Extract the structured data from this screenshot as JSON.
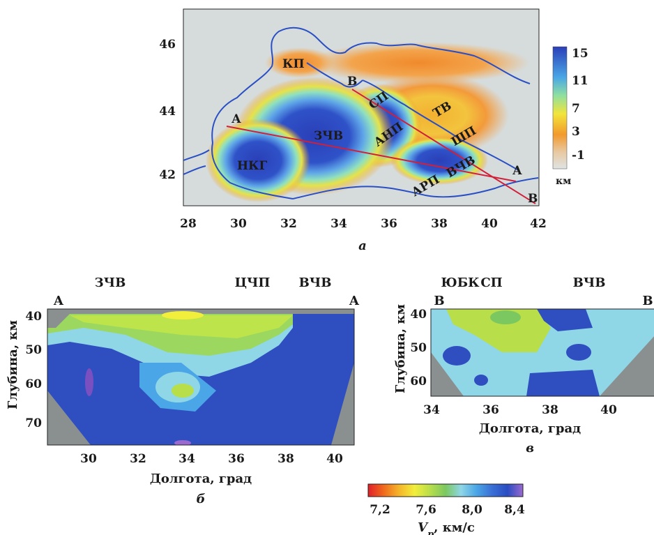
{
  "map": {
    "caption": "а",
    "lon_ticks": [
      "28",
      "30",
      "32",
      "34",
      "36",
      "38",
      "40",
      "42"
    ],
    "lat_ticks": [
      "46",
      "44",
      "42"
    ],
    "colorbar": {
      "ticks": [
        "15",
        "11",
        "7",
        "3",
        "-1"
      ],
      "unit": "км"
    },
    "regions": [
      "КП",
      "В",
      "СП",
      "ТВ",
      "ШП",
      "А",
      "ЗЧВ",
      "АНП",
      "НКГ",
      "ВЧВ",
      "А",
      "АРП",
      "В"
    ],
    "colors": {
      "coast": "#2a4fc4",
      "profile": "#d0203a"
    }
  },
  "section_b": {
    "caption": "б",
    "top_labels": [
      "ЗЧВ",
      "ЦЧП",
      "ВЧВ"
    ],
    "end_left": "А",
    "end_right": "А",
    "x_ticks": [
      "30",
      "32",
      "34",
      "36",
      "38",
      "40"
    ],
    "y_ticks": [
      "40",
      "50",
      "60",
      "70"
    ],
    "xlabel": "Долгота, град",
    "ylabel": "Глубина, км"
  },
  "section_c": {
    "caption": "в",
    "top_labels": [
      "ЮБК",
      "СП",
      "ВЧВ"
    ],
    "end_left": "В",
    "end_right": "В",
    "x_ticks": [
      "34",
      "36",
      "38",
      "40"
    ],
    "y_ticks": [
      "40",
      "50",
      "60"
    ],
    "xlabel": "Долгота, град",
    "ylabel": "Глубина, км"
  },
  "vp_scale": {
    "ticks": [
      "7,2",
      "7,6",
      "8,0",
      "8,4"
    ],
    "label_var": "V",
    "label_sub": "p",
    "label_unit": ", км/с",
    "colors": [
      "#e0202a",
      "#f06a1c",
      "#f5b52a",
      "#f2ee3c",
      "#b8de4a",
      "#7cc860",
      "#8fd6e6",
      "#4aa6e6",
      "#3a6fd6",
      "#2a4cc2",
      "#4a3ab8",
      "#9a6ad0"
    ]
  }
}
